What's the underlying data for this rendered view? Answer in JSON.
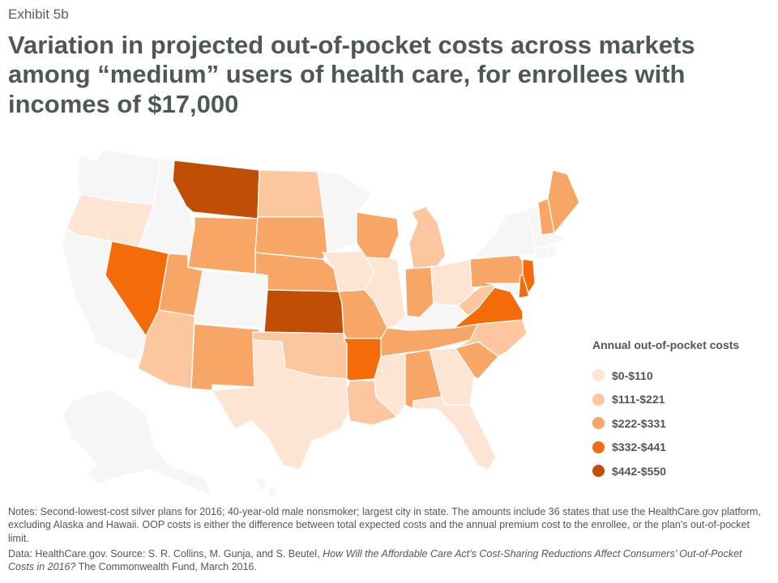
{
  "exhibit_label": "Exhibit 5b",
  "title": "Variation in projected out-of-pocket costs across markets among “medium” users of health care, for enrollees with incomes of $17,000",
  "colors": {
    "no_data": "#f6f6f6",
    "bin1": "#fde4d3",
    "bin2": "#fcc69e",
    "bin3": "#f8a665",
    "bin4": "#f46c0a",
    "bin5": "#c04e05"
  },
  "legend": {
    "title": "Annual out-of-pocket costs",
    "items": [
      {
        "label": "$0-$110",
        "color": "#fde4d3"
      },
      {
        "label": "$111-$221",
        "color": "#fcc69e"
      },
      {
        "label": "$222-$331",
        "color": "#f8a665"
      },
      {
        "label": "$332-$441",
        "color": "#f46c0a"
      },
      {
        "label": "$442-$550",
        "color": "#c04e05"
      }
    ]
  },
  "map_data": {
    "WA": "none",
    "OR": "bin1",
    "CA": "none",
    "NV": "bin4",
    "ID": "none",
    "MT": "bin5",
    "WY": "bin3",
    "UT": "bin3",
    "AZ": "bin2",
    "CO": "none",
    "NM": "bin3",
    "ND": "bin2",
    "SD": "bin3",
    "NE": "bin3",
    "KS": "bin5",
    "OK": "bin2",
    "TX": "bin1",
    "MN": "none",
    "IA": "bin1",
    "MO": "bin3",
    "AR": "bin4",
    "LA": "bin2",
    "WI": "bin3",
    "IL": "bin1",
    "MI": "bin2",
    "IN": "bin3",
    "OH": "bin1",
    "KY": "none",
    "TN": "bin3",
    "MS": "bin1",
    "AL": "bin3",
    "GA": "bin1",
    "FL": "bin1",
    "SC": "bin3",
    "NC": "bin2",
    "VA": "bin4",
    "WV": "bin2",
    "PA": "bin3",
    "NY": "none",
    "NJ": "bin4",
    "DE": "bin4",
    "MD": "none",
    "ME": "bin3",
    "NH": "bin3",
    "VT": "none",
    "MA": "none",
    "CT": "none",
    "RI": "none",
    "AK": "none"
  },
  "notes": {
    "notes_text": "Notes: Second-lowest-cost silver plans for 2016; 40-year-old male nonsmoker; largest city in state. The amounts include 36 states that use the HealthCare.gov platform, excluding Alaska and Hawaii. OOP costs is either the difference between total expected costs and the annual premium cost to the enrollee, or the plan's out-of-pocket limit.",
    "data_prefix": "Data: HealthCare.gov. Source: S. R. Collins, M. Gunja, and S. Beutel, ",
    "data_report": "How Will the Affordable Care Act’s Cost-Sharing Reductions Affect Consumers’ Out-of-Pocket Costs in 2016?",
    "data_suffix": " The Commonwealth Fund, March 2016."
  }
}
